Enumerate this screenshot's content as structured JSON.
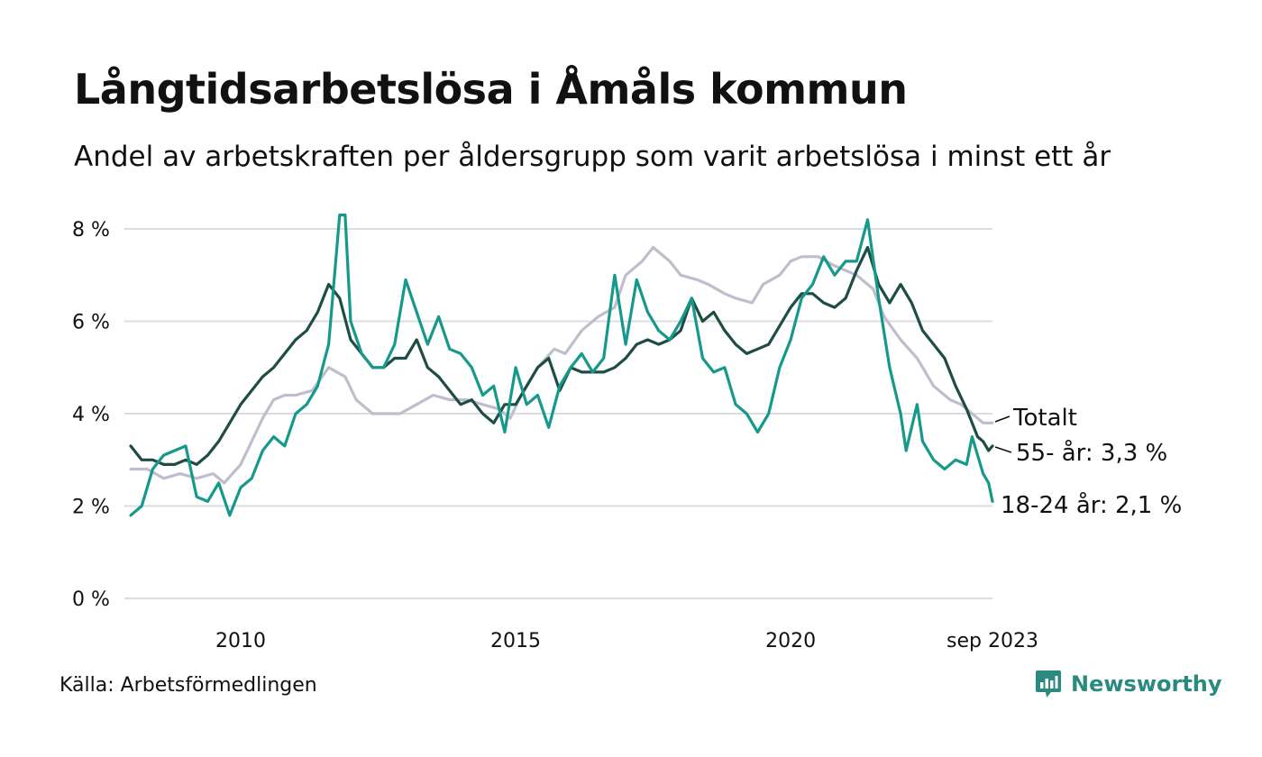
{
  "title": "Långtidsarbetslösa i Åmåls kommun",
  "subtitle": "Andel av arbetskraften per åldersgrupp som varit arbetslösa i minst ett år",
  "source": "Källa: Arbetsförmedlingen",
  "brand": {
    "name": "Newsworthy",
    "icon": "newsworthy-logo-icon",
    "color": "#2a8a80"
  },
  "chart_data": {
    "type": "line",
    "title": "Långtidsarbetslösa i Åmåls kommun",
    "ylabel": "",
    "xlabel": "",
    "ylim": [
      0,
      8.3
    ],
    "xlim": [
      2008.0,
      2023.67
    ],
    "y_ticks": [
      {
        "value": 0,
        "label": "0 %"
      },
      {
        "value": 2,
        "label": "2 %"
      },
      {
        "value": 4,
        "label": "4 %"
      },
      {
        "value": 6,
        "label": "6 %"
      },
      {
        "value": 8,
        "label": "8 %"
      }
    ],
    "x_ticks": [
      {
        "value": 2010,
        "label": "2010"
      },
      {
        "value": 2015,
        "label": "2015"
      },
      {
        "value": 2020,
        "label": "2020"
      },
      {
        "value": 2023.67,
        "label": "sep 2023"
      }
    ],
    "grid": true,
    "series": [
      {
        "name": "Totalt",
        "label": "Totalt",
        "color": "#c0bdcc",
        "points": [
          [
            2008.0,
            2.8
          ],
          [
            2008.3,
            2.8
          ],
          [
            2008.6,
            2.6
          ],
          [
            2008.9,
            2.7
          ],
          [
            2009.2,
            2.6
          ],
          [
            2009.5,
            2.7
          ],
          [
            2009.7,
            2.5
          ],
          [
            2010.0,
            2.9
          ],
          [
            2010.2,
            3.4
          ],
          [
            2010.4,
            3.9
          ],
          [
            2010.6,
            4.3
          ],
          [
            2010.8,
            4.4
          ],
          [
            2011.0,
            4.4
          ],
          [
            2011.3,
            4.5
          ],
          [
            2011.6,
            5.0
          ],
          [
            2011.9,
            4.8
          ],
          [
            2012.1,
            4.3
          ],
          [
            2012.4,
            4.0
          ],
          [
            2012.7,
            4.0
          ],
          [
            2012.9,
            4.0
          ],
          [
            2013.2,
            4.2
          ],
          [
            2013.5,
            4.4
          ],
          [
            2013.8,
            4.3
          ],
          [
            2014.1,
            4.3
          ],
          [
            2014.4,
            4.2
          ],
          [
            2014.7,
            4.1
          ],
          [
            2014.9,
            3.9
          ],
          [
            2015.1,
            4.4
          ],
          [
            2015.4,
            5.0
          ],
          [
            2015.7,
            5.4
          ],
          [
            2015.9,
            5.3
          ],
          [
            2016.2,
            5.8
          ],
          [
            2016.5,
            6.1
          ],
          [
            2016.8,
            6.3
          ],
          [
            2017.0,
            7.0
          ],
          [
            2017.3,
            7.3
          ],
          [
            2017.5,
            7.6
          ],
          [
            2017.8,
            7.3
          ],
          [
            2018.0,
            7.0
          ],
          [
            2018.3,
            6.9
          ],
          [
            2018.5,
            6.8
          ],
          [
            2018.8,
            6.6
          ],
          [
            2019.0,
            6.5
          ],
          [
            2019.3,
            6.4
          ],
          [
            2019.5,
            6.8
          ],
          [
            2019.8,
            7.0
          ],
          [
            2020.0,
            7.3
          ],
          [
            2020.2,
            7.4
          ],
          [
            2020.5,
            7.4
          ],
          [
            2020.8,
            7.2
          ],
          [
            2021.0,
            7.1
          ],
          [
            2021.2,
            7.0
          ],
          [
            2021.5,
            6.7
          ],
          [
            2021.7,
            6.1
          ],
          [
            2022.0,
            5.6
          ],
          [
            2022.3,
            5.2
          ],
          [
            2022.6,
            4.6
          ],
          [
            2022.9,
            4.3
          ],
          [
            2023.1,
            4.2
          ],
          [
            2023.3,
            4.0
          ],
          [
            2023.5,
            3.8
          ],
          [
            2023.67,
            3.8
          ]
        ]
      },
      {
        "name": "55- år",
        "label": "55- år: 3,3 %",
        "color": "#1f4d46",
        "points": [
          [
            2008.0,
            3.3
          ],
          [
            2008.2,
            3.0
          ],
          [
            2008.4,
            3.0
          ],
          [
            2008.6,
            2.9
          ],
          [
            2008.8,
            2.9
          ],
          [
            2009.0,
            3.0
          ],
          [
            2009.2,
            2.9
          ],
          [
            2009.4,
            3.1
          ],
          [
            2009.6,
            3.4
          ],
          [
            2009.8,
            3.8
          ],
          [
            2010.0,
            4.2
          ],
          [
            2010.2,
            4.5
          ],
          [
            2010.4,
            4.8
          ],
          [
            2010.6,
            5.0
          ],
          [
            2010.8,
            5.3
          ],
          [
            2011.0,
            5.6
          ],
          [
            2011.2,
            5.8
          ],
          [
            2011.4,
            6.2
          ],
          [
            2011.6,
            6.8
          ],
          [
            2011.8,
            6.5
          ],
          [
            2012.0,
            5.6
          ],
          [
            2012.2,
            5.3
          ],
          [
            2012.4,
            5.0
          ],
          [
            2012.6,
            5.0
          ],
          [
            2012.8,
            5.2
          ],
          [
            2013.0,
            5.2
          ],
          [
            2013.2,
            5.6
          ],
          [
            2013.4,
            5.0
          ],
          [
            2013.6,
            4.8
          ],
          [
            2013.8,
            4.5
          ],
          [
            2014.0,
            4.2
          ],
          [
            2014.2,
            4.3
          ],
          [
            2014.4,
            4.0
          ],
          [
            2014.6,
            3.8
          ],
          [
            2014.8,
            4.2
          ],
          [
            2015.0,
            4.2
          ],
          [
            2015.2,
            4.6
          ],
          [
            2015.4,
            5.0
          ],
          [
            2015.6,
            5.2
          ],
          [
            2015.8,
            4.5
          ],
          [
            2016.0,
            5.0
          ],
          [
            2016.2,
            4.9
          ],
          [
            2016.4,
            4.9
          ],
          [
            2016.6,
            4.9
          ],
          [
            2016.8,
            5.0
          ],
          [
            2017.0,
            5.2
          ],
          [
            2017.2,
            5.5
          ],
          [
            2017.4,
            5.6
          ],
          [
            2017.6,
            5.5
          ],
          [
            2017.8,
            5.6
          ],
          [
            2018.0,
            5.8
          ],
          [
            2018.2,
            6.5
          ],
          [
            2018.4,
            6.0
          ],
          [
            2018.6,
            6.2
          ],
          [
            2018.8,
            5.8
          ],
          [
            2019.0,
            5.5
          ],
          [
            2019.2,
            5.3
          ],
          [
            2019.4,
            5.4
          ],
          [
            2019.6,
            5.5
          ],
          [
            2019.8,
            5.9
          ],
          [
            2020.0,
            6.3
          ],
          [
            2020.2,
            6.6
          ],
          [
            2020.4,
            6.6
          ],
          [
            2020.6,
            6.4
          ],
          [
            2020.8,
            6.3
          ],
          [
            2021.0,
            6.5
          ],
          [
            2021.2,
            7.1
          ],
          [
            2021.4,
            7.6
          ],
          [
            2021.6,
            6.8
          ],
          [
            2021.8,
            6.4
          ],
          [
            2022.0,
            6.8
          ],
          [
            2022.2,
            6.4
          ],
          [
            2022.4,
            5.8
          ],
          [
            2022.6,
            5.5
          ],
          [
            2022.8,
            5.2
          ],
          [
            2023.0,
            4.6
          ],
          [
            2023.2,
            4.1
          ],
          [
            2023.3,
            3.8
          ],
          [
            2023.4,
            3.5
          ],
          [
            2023.5,
            3.4
          ],
          [
            2023.6,
            3.2
          ],
          [
            2023.67,
            3.3
          ]
        ]
      },
      {
        "name": "18-24 år",
        "label": "18-24 år: 2,1 %",
        "color": "#16998a",
        "points": [
          [
            2008.0,
            1.8
          ],
          [
            2008.2,
            2.0
          ],
          [
            2008.4,
            2.8
          ],
          [
            2008.6,
            3.1
          ],
          [
            2008.8,
            3.2
          ],
          [
            2009.0,
            3.3
          ],
          [
            2009.2,
            2.2
          ],
          [
            2009.4,
            2.1
          ],
          [
            2009.6,
            2.5
          ],
          [
            2009.8,
            1.8
          ],
          [
            2010.0,
            2.4
          ],
          [
            2010.2,
            2.6
          ],
          [
            2010.4,
            3.2
          ],
          [
            2010.6,
            3.5
          ],
          [
            2010.8,
            3.3
          ],
          [
            2011.0,
            4.0
          ],
          [
            2011.2,
            4.2
          ],
          [
            2011.4,
            4.6
          ],
          [
            2011.6,
            5.5
          ],
          [
            2011.8,
            8.3
          ],
          [
            2011.9,
            8.3
          ],
          [
            2012.0,
            6.0
          ],
          [
            2012.2,
            5.3
          ],
          [
            2012.4,
            5.0
          ],
          [
            2012.6,
            5.0
          ],
          [
            2012.8,
            5.5
          ],
          [
            2013.0,
            6.9
          ],
          [
            2013.2,
            6.2
          ],
          [
            2013.4,
            5.5
          ],
          [
            2013.6,
            6.1
          ],
          [
            2013.8,
            5.4
          ],
          [
            2014.0,
            5.3
          ],
          [
            2014.2,
            5.0
          ],
          [
            2014.4,
            4.4
          ],
          [
            2014.6,
            4.6
          ],
          [
            2014.8,
            3.6
          ],
          [
            2015.0,
            5.0
          ],
          [
            2015.2,
            4.2
          ],
          [
            2015.4,
            4.4
          ],
          [
            2015.6,
            3.7
          ],
          [
            2015.8,
            4.6
          ],
          [
            2016.0,
            5.0
          ],
          [
            2016.2,
            5.3
          ],
          [
            2016.4,
            4.9
          ],
          [
            2016.6,
            5.2
          ],
          [
            2016.8,
            7.0
          ],
          [
            2017.0,
            5.5
          ],
          [
            2017.2,
            6.9
          ],
          [
            2017.4,
            6.2
          ],
          [
            2017.6,
            5.8
          ],
          [
            2017.8,
            5.6
          ],
          [
            2018.0,
            6.0
          ],
          [
            2018.2,
            6.5
          ],
          [
            2018.4,
            5.2
          ],
          [
            2018.6,
            4.9
          ],
          [
            2018.8,
            5.0
          ],
          [
            2019.0,
            4.2
          ],
          [
            2019.2,
            4.0
          ],
          [
            2019.4,
            3.6
          ],
          [
            2019.6,
            4.0
          ],
          [
            2019.8,
            5.0
          ],
          [
            2020.0,
            5.6
          ],
          [
            2020.2,
            6.5
          ],
          [
            2020.4,
            6.8
          ],
          [
            2020.6,
            7.4
          ],
          [
            2020.8,
            7.0
          ],
          [
            2021.0,
            7.3
          ],
          [
            2021.2,
            7.3
          ],
          [
            2021.4,
            8.2
          ],
          [
            2021.6,
            6.5
          ],
          [
            2021.8,
            5.0
          ],
          [
            2022.0,
            4.0
          ],
          [
            2022.1,
            3.2
          ],
          [
            2022.3,
            4.2
          ],
          [
            2022.4,
            3.4
          ],
          [
            2022.6,
            3.0
          ],
          [
            2022.8,
            2.8
          ],
          [
            2023.0,
            3.0
          ],
          [
            2023.2,
            2.9
          ],
          [
            2023.3,
            3.5
          ],
          [
            2023.4,
            3.1
          ],
          [
            2023.5,
            2.7
          ],
          [
            2023.6,
            2.5
          ],
          [
            2023.67,
            2.1
          ]
        ]
      }
    ]
  }
}
